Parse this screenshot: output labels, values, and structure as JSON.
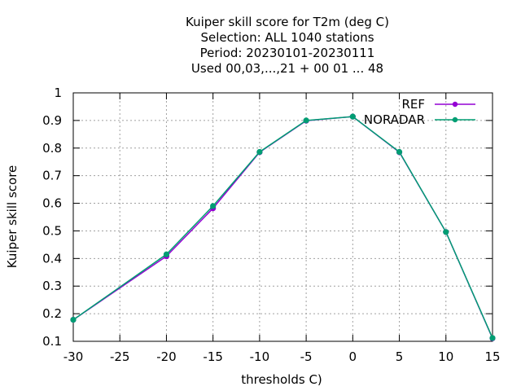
{
  "chart_data": {
    "type": "line",
    "title_lines": [
      "Kuiper skill score  for T2m (deg C)",
      "Selection: ALL   1040 stations",
      "Period: 20230101-20230111",
      "Used  00,03,...,21  + 00 01 ... 48"
    ],
    "xlabel": "thresholds C)",
    "ylabel": "Kuiper skill score",
    "xlim": [
      -30,
      15
    ],
    "ylim": [
      0.1,
      1.0
    ],
    "xticks": [
      -30,
      -25,
      -20,
      -15,
      -10,
      -5,
      0,
      5,
      10,
      15
    ],
    "yticks": [
      0.1,
      0.2,
      0.3,
      0.4,
      0.5,
      0.6,
      0.7,
      0.8,
      0.9,
      1
    ],
    "grid": true,
    "legend_position": "top-right",
    "x": [
      -30,
      -20,
      -15,
      -10,
      -5,
      0,
      5,
      10,
      15
    ],
    "series": [
      {
        "name": "REF",
        "color": "#9400d3",
        "values": [
          0.178,
          0.408,
          0.582,
          0.785,
          0.899,
          0.914,
          0.785,
          0.496,
          0.111
        ]
      },
      {
        "name": "NORADAR",
        "color": "#009e73",
        "values": [
          0.178,
          0.415,
          0.59,
          0.786,
          0.9,
          0.914,
          0.786,
          0.496,
          0.112
        ]
      }
    ]
  }
}
